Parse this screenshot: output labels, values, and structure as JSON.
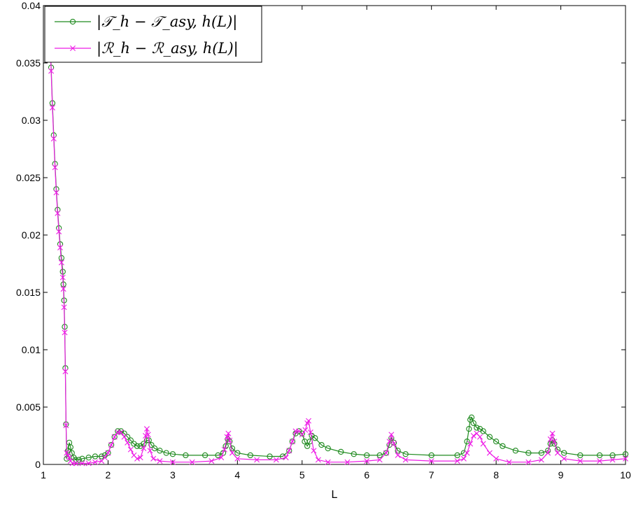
{
  "chart_data": {
    "type": "line",
    "title": "",
    "xlabel": "L",
    "ylabel": "",
    "xlim": [
      1,
      10
    ],
    "ylim": [
      0,
      0.04
    ],
    "xticks": [
      1,
      2,
      3,
      4,
      5,
      6,
      7,
      8,
      9,
      10
    ],
    "yticks": [
      0,
      0.005,
      0.01,
      0.015,
      0.02,
      0.025,
      0.03,
      0.035,
      0.04
    ],
    "xtick_labels": [
      "1",
      "2",
      "3",
      "4",
      "5",
      "6",
      "7",
      "8",
      "9",
      "10"
    ],
    "ytick_labels": [
      "0",
      "0.005",
      "0.01",
      "0.015",
      "0.02",
      "0.025",
      "0.03",
      "0.035",
      "0.04"
    ],
    "grid": false,
    "legend_position": "top-left",
    "series": [
      {
        "name": "|𝒯_h − 𝒯_asy, h(L)|",
        "color": "#1f8a1f",
        "marker": "circle",
        "points": [
          [
            1.1,
            0.0381
          ],
          [
            1.12,
            0.0346
          ],
          [
            1.14,
            0.0315
          ],
          [
            1.16,
            0.0287
          ],
          [
            1.18,
            0.0262
          ],
          [
            1.2,
            0.024
          ],
          [
            1.22,
            0.0222
          ],
          [
            1.24,
            0.0206
          ],
          [
            1.26,
            0.0192
          ],
          [
            1.28,
            0.018
          ],
          [
            1.3,
            0.0168
          ],
          [
            1.31,
            0.0157
          ],
          [
            1.32,
            0.0143
          ],
          [
            1.33,
            0.012
          ],
          [
            1.34,
            0.0084
          ],
          [
            1.35,
            0.0035
          ],
          [
            1.36,
            0.0005
          ],
          [
            1.38,
            0.0012
          ],
          [
            1.4,
            0.0019
          ],
          [
            1.42,
            0.0015
          ],
          [
            1.44,
            0.001
          ],
          [
            1.47,
            0.0006
          ],
          [
            1.5,
            0.0004
          ],
          [
            1.55,
            0.0004
          ],
          [
            1.6,
            0.0005
          ],
          [
            1.7,
            0.0006
          ],
          [
            1.8,
            0.0007
          ],
          [
            1.9,
            0.0007
          ],
          [
            1.95,
            0.0008
          ],
          [
            2.0,
            0.001
          ],
          [
            2.05,
            0.0017
          ],
          [
            2.1,
            0.0024
          ],
          [
            2.15,
            0.0029
          ],
          [
            2.2,
            0.0029
          ],
          [
            2.25,
            0.0027
          ],
          [
            2.3,
            0.0024
          ],
          [
            2.35,
            0.0021
          ],
          [
            2.4,
            0.0018
          ],
          [
            2.45,
            0.0016
          ],
          [
            2.5,
            0.0016
          ],
          [
            2.55,
            0.0018
          ],
          [
            2.6,
            0.0021
          ],
          [
            2.63,
            0.0021
          ],
          [
            2.67,
            0.0017
          ],
          [
            2.72,
            0.0014
          ],
          [
            2.8,
            0.0012
          ],
          [
            2.9,
            0.001
          ],
          [
            3.0,
            0.0009
          ],
          [
            3.2,
            0.0008
          ],
          [
            3.5,
            0.0008
          ],
          [
            3.7,
            0.0008
          ],
          [
            3.78,
            0.001
          ],
          [
            3.82,
            0.0016
          ],
          [
            3.85,
            0.0022
          ],
          [
            3.88,
            0.002
          ],
          [
            3.92,
            0.0014
          ],
          [
            4.0,
            0.001
          ],
          [
            4.2,
            0.0008
          ],
          [
            4.5,
            0.0007
          ],
          [
            4.7,
            0.0007
          ],
          [
            4.8,
            0.0012
          ],
          [
            4.85,
            0.002
          ],
          [
            4.9,
            0.0027
          ],
          [
            4.95,
            0.0029
          ],
          [
            5.0,
            0.0027
          ],
          [
            5.04,
            0.002
          ],
          [
            5.08,
            0.0016
          ],
          [
            5.12,
            0.002
          ],
          [
            5.15,
            0.0025
          ],
          [
            5.2,
            0.0023
          ],
          [
            5.3,
            0.0017
          ],
          [
            5.4,
            0.0014
          ],
          [
            5.6,
            0.0011
          ],
          [
            5.8,
            0.0009
          ],
          [
            6.0,
            0.0008
          ],
          [
            6.2,
            0.0008
          ],
          [
            6.3,
            0.001
          ],
          [
            6.35,
            0.0017
          ],
          [
            6.38,
            0.0023
          ],
          [
            6.42,
            0.0019
          ],
          [
            6.48,
            0.0012
          ],
          [
            6.6,
            0.0009
          ],
          [
            7.0,
            0.0008
          ],
          [
            7.4,
            0.0008
          ],
          [
            7.5,
            0.001
          ],
          [
            7.55,
            0.002
          ],
          [
            7.58,
            0.0031
          ],
          [
            7.6,
            0.0039
          ],
          [
            7.62,
            0.0041
          ],
          [
            7.65,
            0.0036
          ],
          [
            7.7,
            0.0032
          ],
          [
            7.75,
            0.0031
          ],
          [
            7.8,
            0.0029
          ],
          [
            7.9,
            0.0024
          ],
          [
            8.0,
            0.002
          ],
          [
            8.1,
            0.0016
          ],
          [
            8.3,
            0.0012
          ],
          [
            8.5,
            0.001
          ],
          [
            8.7,
            0.001
          ],
          [
            8.8,
            0.0012
          ],
          [
            8.84,
            0.0018
          ],
          [
            8.87,
            0.0021
          ],
          [
            8.9,
            0.0018
          ],
          [
            8.95,
            0.0013
          ],
          [
            9.05,
            0.001
          ],
          [
            9.3,
            0.0008
          ],
          [
            9.6,
            0.0008
          ],
          [
            9.8,
            0.0008
          ],
          [
            10.0,
            0.0009
          ]
        ]
      },
      {
        "name": "|ℛ_h − ℛ_asy, h(L)|",
        "color": "#ee1ce6",
        "marker": "x",
        "points": [
          [
            1.1,
            0.0378
          ],
          [
            1.12,
            0.0343
          ],
          [
            1.14,
            0.0311
          ],
          [
            1.16,
            0.0284
          ],
          [
            1.18,
            0.0259
          ],
          [
            1.2,
            0.0237
          ],
          [
            1.22,
            0.0219
          ],
          [
            1.24,
            0.0203
          ],
          [
            1.26,
            0.0189
          ],
          [
            1.28,
            0.0176
          ],
          [
            1.3,
            0.0163
          ],
          [
            1.31,
            0.0153
          ],
          [
            1.32,
            0.0137
          ],
          [
            1.33,
            0.0115
          ],
          [
            1.34,
            0.0081
          ],
          [
            1.35,
            0.0034
          ],
          [
            1.36,
            0.001
          ],
          [
            1.38,
            0.0008
          ],
          [
            1.4,
            0.0006
          ],
          [
            1.42,
            0.0003
          ],
          [
            1.45,
            0.0001
          ],
          [
            1.5,
            0.0001
          ],
          [
            1.6,
            0.0001
          ],
          [
            1.7,
            0.0001
          ],
          [
            1.8,
            0.0002
          ],
          [
            1.9,
            0.0003
          ],
          [
            1.95,
            0.0006
          ],
          [
            2.0,
            0.001
          ],
          [
            2.05,
            0.0017
          ],
          [
            2.1,
            0.0024
          ],
          [
            2.15,
            0.0028
          ],
          [
            2.2,
            0.0028
          ],
          [
            2.25,
            0.0024
          ],
          [
            2.3,
            0.0019
          ],
          [
            2.35,
            0.0013
          ],
          [
            2.4,
            0.0008
          ],
          [
            2.45,
            0.0005
          ],
          [
            2.5,
            0.0006
          ],
          [
            2.55,
            0.0014
          ],
          [
            2.58,
            0.0025
          ],
          [
            2.6,
            0.0031
          ],
          [
            2.62,
            0.0026
          ],
          [
            2.65,
            0.0012
          ],
          [
            2.7,
            0.0005
          ],
          [
            2.8,
            0.0003
          ],
          [
            3.0,
            0.0002
          ],
          [
            3.3,
            0.0002
          ],
          [
            3.6,
            0.0003
          ],
          [
            3.75,
            0.0006
          ],
          [
            3.8,
            0.0013
          ],
          [
            3.84,
            0.0024
          ],
          [
            3.86,
            0.0027
          ],
          [
            3.88,
            0.0021
          ],
          [
            3.92,
            0.001
          ],
          [
            4.0,
            0.0005
          ],
          [
            4.3,
            0.0004
          ],
          [
            4.6,
            0.0004
          ],
          [
            4.75,
            0.0006
          ],
          [
            4.8,
            0.0012
          ],
          [
            4.85,
            0.002
          ],
          [
            4.9,
            0.0029
          ],
          [
            4.95,
            0.0029
          ],
          [
            5.0,
            0.0026
          ],
          [
            5.05,
            0.003
          ],
          [
            5.08,
            0.0036
          ],
          [
            5.1,
            0.0038
          ],
          [
            5.13,
            0.0028
          ],
          [
            5.18,
            0.0012
          ],
          [
            5.25,
            0.0004
          ],
          [
            5.4,
            0.0002
          ],
          [
            5.7,
            0.0002
          ],
          [
            6.0,
            0.0003
          ],
          [
            6.2,
            0.0004
          ],
          [
            6.3,
            0.001
          ],
          [
            6.35,
            0.002
          ],
          [
            6.38,
            0.0026
          ],
          [
            6.42,
            0.0018
          ],
          [
            6.48,
            0.0008
          ],
          [
            6.6,
            0.0004
          ],
          [
            7.0,
            0.0003
          ],
          [
            7.4,
            0.0003
          ],
          [
            7.5,
            0.0005
          ],
          [
            7.55,
            0.001
          ],
          [
            7.6,
            0.0018
          ],
          [
            7.65,
            0.0025
          ],
          [
            7.7,
            0.0027
          ],
          [
            7.75,
            0.0024
          ],
          [
            7.8,
            0.0018
          ],
          [
            7.9,
            0.001
          ],
          [
            8.0,
            0.0005
          ],
          [
            8.2,
            0.0002
          ],
          [
            8.5,
            0.0002
          ],
          [
            8.7,
            0.0004
          ],
          [
            8.8,
            0.001
          ],
          [
            8.84,
            0.0022
          ],
          [
            8.87,
            0.0027
          ],
          [
            8.9,
            0.002
          ],
          [
            8.95,
            0.001
          ],
          [
            9.05,
            0.0005
          ],
          [
            9.3,
            0.0003
          ],
          [
            9.6,
            0.0003
          ],
          [
            9.8,
            0.0004
          ],
          [
            10.0,
            0.0005
          ]
        ]
      }
    ]
  }
}
